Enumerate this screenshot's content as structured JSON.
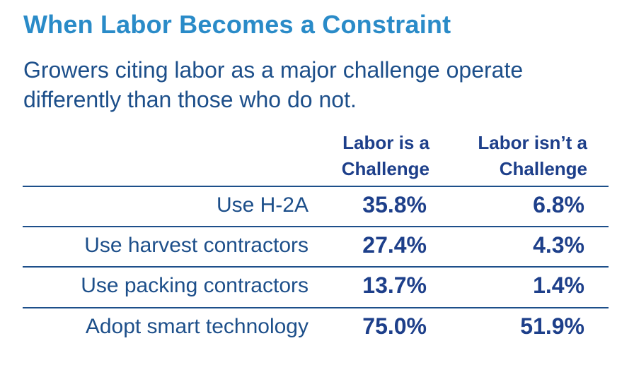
{
  "chart_data": {
    "type": "table",
    "title": "When Labor Becomes a Constraint",
    "subtitle": "Growers citing labor as a major challenge operate differently than those who do not.",
    "columns": [
      {
        "line1": "Labor is a",
        "line2": "Challenge"
      },
      {
        "line1": "Labor isn’t a",
        "line2": "Challenge"
      }
    ],
    "rows": [
      {
        "label": "Use H-2A",
        "values": [
          "35.8%",
          "6.8%"
        ]
      },
      {
        "label": "Use harvest contractors",
        "values": [
          "27.4%",
          "4.3%"
        ]
      },
      {
        "label": "Use packing contractors",
        "values": [
          "13.7%",
          "1.4%"
        ]
      },
      {
        "label": "Adopt smart technology",
        "values": [
          "75.0%",
          "51.9%"
        ]
      }
    ]
  },
  "colors": {
    "title": "#2a8bc8",
    "text": "#1d4f8a",
    "header": "#1d3f8a",
    "rule": "#1d4f8a"
  }
}
